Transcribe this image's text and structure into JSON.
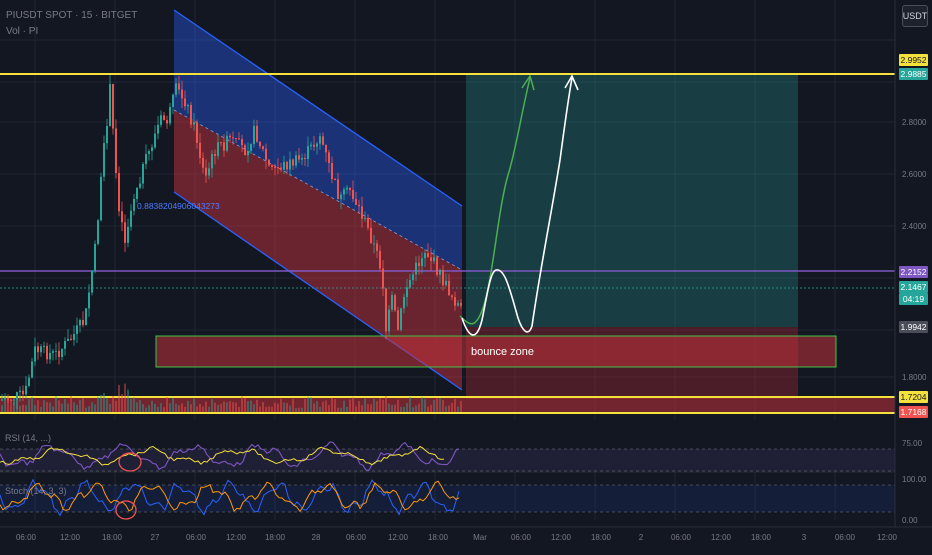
{
  "header": {
    "symbol_line": "PIUSDT SPOT · 15 · BITGET",
    "volume_line": "Vol · PI"
  },
  "currency_button": "USDT",
  "price_axis": {
    "ticks": [
      "2.8000",
      "2.6000",
      "2.4000",
      "1.8000"
    ],
    "tags": {
      "upper_resistance": "2.9952",
      "target": "2.9885",
      "mid_line": "2.2152",
      "last_price": "2.1467",
      "countdown": "04:19",
      "entry": "1.9942",
      "support_a": "1.7204",
      "support_b": "1.7168"
    }
  },
  "annotations": {
    "bounce_zone": "bounce zone",
    "channel_label": "0.8838204906043273"
  },
  "rsi_panel": {
    "label": "RSI (14, ...)",
    "ticks": [
      "75.00"
    ]
  },
  "stoch_panel": {
    "label": "Stoch (14, 3, 3)",
    "ticks": [
      "100.00",
      "0.00"
    ]
  },
  "time_axis": [
    "06:00",
    "12:00",
    "18:00",
    "27",
    "06:00",
    "12:00",
    "18:00",
    "28",
    "06:00",
    "12:00",
    "18:00",
    "Mar",
    "06:00",
    "12:00",
    "18:00",
    "2",
    "06:00",
    "12:00",
    "18:00",
    "3",
    "06:00",
    "12:00"
  ],
  "colors": {
    "background": "#131722",
    "yellow_line": "#f5e13b",
    "purple_line": "#7e57c2",
    "channel_blue": "#2962ff",
    "zone_red": "#b22833",
    "target_green": "#26a69a",
    "up_candle": "#26a69a",
    "down_candle": "#ef5350"
  }
}
